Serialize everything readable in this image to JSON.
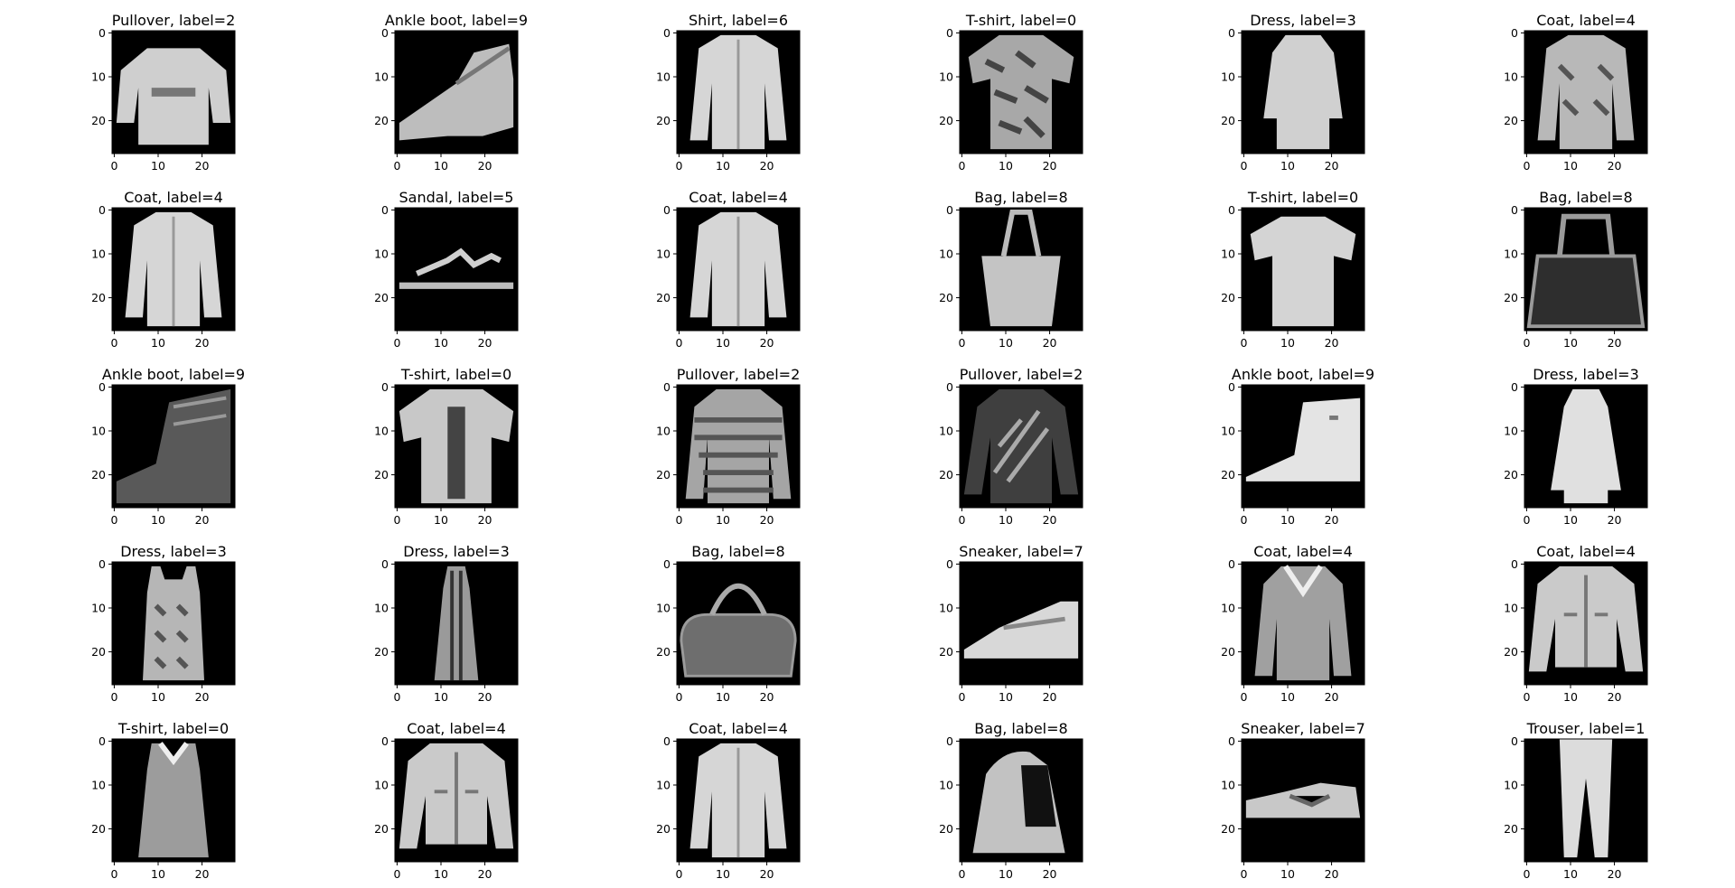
{
  "chart_data": {
    "type": "image-grid",
    "layout": {
      "rows": 5,
      "cols": 6
    },
    "image_size": [
      28,
      28
    ],
    "colormap": "gray",
    "background": "#000000",
    "axis_ticks": {
      "x": [
        "0",
        "10",
        "20"
      ],
      "y": [
        "0",
        "10",
        "20"
      ]
    },
    "panels": [
      {
        "title": "Pullover, label=2",
        "item": "pullover",
        "label": 2
      },
      {
        "title": "Ankle boot, label=9",
        "item": "sneaker-boot",
        "label": 9
      },
      {
        "title": "Shirt, label=6",
        "item": "coat",
        "label": 6
      },
      {
        "title": "T-shirt, label=0",
        "item": "tshirt-pattern",
        "label": 0
      },
      {
        "title": "Dress, label=3",
        "item": "dress",
        "label": 3
      },
      {
        "title": "Coat, label=4",
        "item": "coat-pattern",
        "label": 4
      },
      {
        "title": "Coat, label=4",
        "item": "coat",
        "label": 4
      },
      {
        "title": "Sandal, label=5",
        "item": "sandal",
        "label": 5
      },
      {
        "title": "Coat, label=4",
        "item": "coat",
        "label": 4
      },
      {
        "title": "Bag, label=8",
        "item": "tote",
        "label": 8
      },
      {
        "title": "T-shirt, label=0",
        "item": "tshirt",
        "label": 0
      },
      {
        "title": "Bag, label=8",
        "item": "handbag-dark",
        "label": 8
      },
      {
        "title": "Ankle boot, label=9",
        "item": "boot-dark",
        "label": 9
      },
      {
        "title": "T-shirt, label=0",
        "item": "tshirt-print",
        "label": 0
      },
      {
        "title": "Pullover, label=2",
        "item": "pullover-striped",
        "label": 2
      },
      {
        "title": "Pullover, label=2",
        "item": "pullover-dark",
        "label": 2
      },
      {
        "title": "Ankle boot, label=9",
        "item": "boot-light",
        "label": 9
      },
      {
        "title": "Dress, label=3",
        "item": "dress-long",
        "label": 3
      },
      {
        "title": "Dress, label=3",
        "item": "dress-pattern",
        "label": 3
      },
      {
        "title": "Dress, label=3",
        "item": "dress-thin",
        "label": 3
      },
      {
        "title": "Bag, label=8",
        "item": "bag-round",
        "label": 8
      },
      {
        "title": "Sneaker, label=7",
        "item": "sneaker",
        "label": 7
      },
      {
        "title": "Coat, label=4",
        "item": "coat-hood",
        "label": 4
      },
      {
        "title": "Coat, label=4",
        "item": "jacket",
        "label": 4
      },
      {
        "title": "T-shirt, label=0",
        "item": "tanktop",
        "label": 0
      },
      {
        "title": "Coat, label=4",
        "item": "jacket",
        "label": 4
      },
      {
        "title": "Coat, label=4",
        "item": "coat",
        "label": 4
      },
      {
        "title": "Bag, label=8",
        "item": "backpack",
        "label": 8
      },
      {
        "title": "Sneaker, label=7",
        "item": "sneaker-low",
        "label": 7
      },
      {
        "title": "Trouser, label=1",
        "item": "trouser",
        "label": 1
      }
    ]
  }
}
